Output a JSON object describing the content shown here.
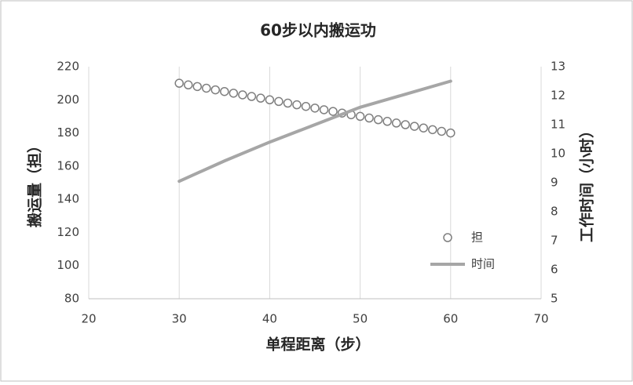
{
  "chart_data": {
    "type": "scatter",
    "title": "60步以内搬运功",
    "x_label": "单程距离（步）",
    "y_label": "搬运量（担）",
    "y2_label": "工作时间（小时）",
    "xlim": [
      20,
      70
    ],
    "xticks": [
      20,
      30,
      40,
      50,
      60,
      70
    ],
    "ylim": [
      80,
      220
    ],
    "yticks": [
      80,
      100,
      120,
      140,
      160,
      180,
      200,
      220
    ],
    "y2lim": [
      5,
      13
    ],
    "y2ticks": [
      5,
      6,
      7,
      8,
      9,
      10,
      11,
      12,
      13
    ],
    "grid": "x",
    "legend": "lower right",
    "series": [
      {
        "name": "担",
        "type": "scatter",
        "axis": "y",
        "color": "#7f7f7f",
        "x": [
          30,
          31,
          32,
          33,
          34,
          35,
          36,
          37,
          38,
          39,
          40,
          41,
          42,
          43,
          44,
          45,
          46,
          47,
          48,
          49,
          50,
          51,
          52,
          53,
          54,
          55,
          56,
          57,
          58,
          59,
          60
        ],
        "values": [
          210,
          209,
          208,
          207,
          206,
          205,
          204,
          203,
          202,
          201,
          200,
          199,
          198,
          197,
          196,
          195,
          194,
          193,
          192,
          191,
          190,
          189,
          188,
          187,
          186,
          185,
          184,
          183,
          182,
          181,
          180
        ]
      },
      {
        "name": "时间",
        "type": "line",
        "axis": "y2",
        "color": "#a6a6a6",
        "x": [
          30,
          35,
          40,
          45,
          50,
          55,
          60
        ],
        "values": [
          9.05,
          9.75,
          10.4,
          11.0,
          11.6,
          12.05,
          12.5
        ]
      }
    ]
  }
}
